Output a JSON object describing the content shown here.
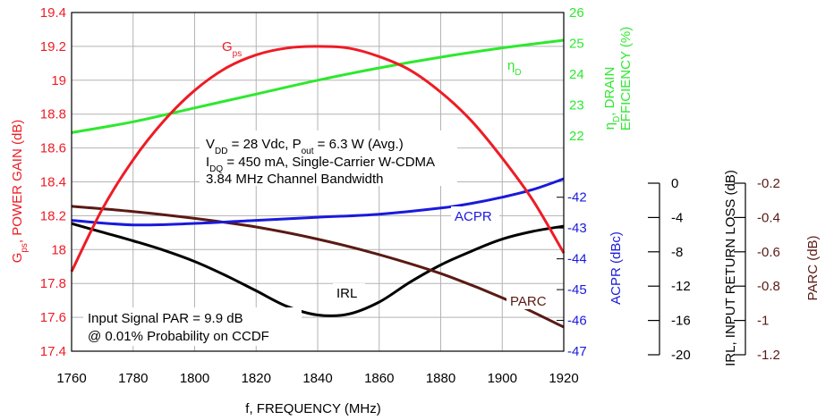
{
  "chart_data": {
    "type": "line",
    "x_axis": {
      "label": "f, FREQUENCY (MHz)",
      "range": [
        1760,
        1920
      ],
      "ticks": [
        "1760",
        "1780",
        "1800",
        "1820",
        "1840",
        "1860",
        "1880",
        "1900",
        "1920"
      ]
    },
    "axes": {
      "gain": {
        "label_main": "G",
        "label_sub": "ps",
        "label_rest": ", POWER GAIN (dB)",
        "color": "#ee1c25",
        "range": [
          17.4,
          19.4
        ],
        "ticks": [
          "19.4",
          "19.2",
          "19",
          "18.8",
          "18.6",
          "18.4",
          "18.2",
          "18",
          "17.8",
          "17.6",
          "17.4"
        ]
      },
      "efficiency": {
        "label_line1_main": "η",
        "label_line1_sub": "D",
        "label_line1_rest": ", DRAIN",
        "label_line2": "EFFICIENCY (%)",
        "color": "#2ee82e",
        "range": [
          15,
          26
        ],
        "ticks": [
          "26",
          "25",
          "24",
          "23",
          "22"
        ]
      },
      "acpr": {
        "label": "ACPR (dBc)",
        "color": "#1a1adc",
        "range": [
          -47,
          -36
        ],
        "ticks": [
          "-42",
          "-43",
          "-44",
          "-45",
          "-46",
          "-47"
        ]
      },
      "irl": {
        "label": "IRL, INPUT RETURN LOSS (dB)",
        "color": "#000000",
        "range": [
          -20,
          0
        ],
        "ticks": [
          "0",
          "-4",
          "-8",
          "-12",
          "-16",
          "-20"
        ]
      },
      "parc": {
        "label": "PARC (dB)",
        "color": "#5a1a14",
        "range": [
          -1.2,
          -0.2
        ],
        "ticks": [
          "-0.2",
          "-0.4",
          "-0.6",
          "-0.8",
          "-1",
          "-1.2"
        ]
      }
    },
    "series": [
      {
        "name": "Gps",
        "label_main": "G",
        "label_sub": "ps",
        "axis": "gain",
        "color": "#ee1c25",
        "x": [
          1760,
          1770,
          1780,
          1790,
          1800,
          1810,
          1820,
          1830,
          1840,
          1850,
          1860,
          1870,
          1880,
          1890,
          1900,
          1910,
          1920
        ],
        "y": [
          17.87,
          18.24,
          18.53,
          18.76,
          18.94,
          19.07,
          19.15,
          19.19,
          19.2,
          19.19,
          19.14,
          19.06,
          18.93,
          18.76,
          18.54,
          18.29,
          17.98
        ]
      },
      {
        "name": "ηD",
        "label_main": "η",
        "label_sub": "D",
        "axis": "efficiency",
        "color": "#2ee82e",
        "x": [
          1760,
          1780,
          1800,
          1820,
          1840,
          1860,
          1880,
          1900,
          1920
        ],
        "y": [
          22.1,
          22.45,
          22.9,
          23.35,
          23.8,
          24.2,
          24.55,
          24.85,
          25.1
        ]
      },
      {
        "name": "ACPR",
        "axis": "acpr",
        "color": "#1a1adc",
        "x": [
          1760,
          1780,
          1800,
          1820,
          1840,
          1860,
          1880,
          1890,
          1900,
          1910,
          1920
        ],
        "y": [
          -42.75,
          -42.9,
          -42.85,
          -42.75,
          -42.65,
          -42.55,
          -42.35,
          -42.2,
          -42,
          -41.75,
          -41.4
        ]
      },
      {
        "name": "IRL",
        "axis": "irl",
        "color": "#000000",
        "x": [
          1760,
          1770,
          1780,
          1790,
          1800,
          1810,
          1820,
          1830,
          1840,
          1850,
          1860,
          1870,
          1880,
          1890,
          1900,
          1910,
          1920
        ],
        "y": [
          -5.2,
          -6.2,
          -7.2,
          -8.3,
          -9.6,
          -11.2,
          -13,
          -14.8,
          -15.8,
          -15.7,
          -14.3,
          -12,
          -10,
          -8.4,
          -7,
          -6.1,
          -5.5
        ]
      },
      {
        "name": "PARC",
        "axis": "parc",
        "color": "#5a1a14",
        "x": [
          1760,
          1780,
          1800,
          1820,
          1840,
          1860,
          1880,
          1900,
          1920
        ],
        "y": [
          -0.36,
          -0.39,
          -0.43,
          -0.48,
          -0.55,
          -0.64,
          -0.75,
          -0.89,
          -1.06
        ]
      }
    ],
    "annotations": {
      "conditions": {
        "line1": {
          "a_main": "V",
          "a_sub": "DD",
          "a_rest": " = 28 Vdc, P",
          "b_sub": "out",
          "b_rest": " = 6.3 W (Avg.)"
        },
        "line2": {
          "main": "I",
          "sub": "DQ",
          "rest": " = 450 mA, Single-Carrier W-CDMA"
        },
        "line3": "3.84 MHz Channel Bandwidth"
      },
      "input_signal": {
        "line1": "Input Signal PAR = 9.9 dB",
        "line2": "@ 0.01% Probability on CCDF"
      }
    },
    "grid": true,
    "legend": "inline labels"
  }
}
